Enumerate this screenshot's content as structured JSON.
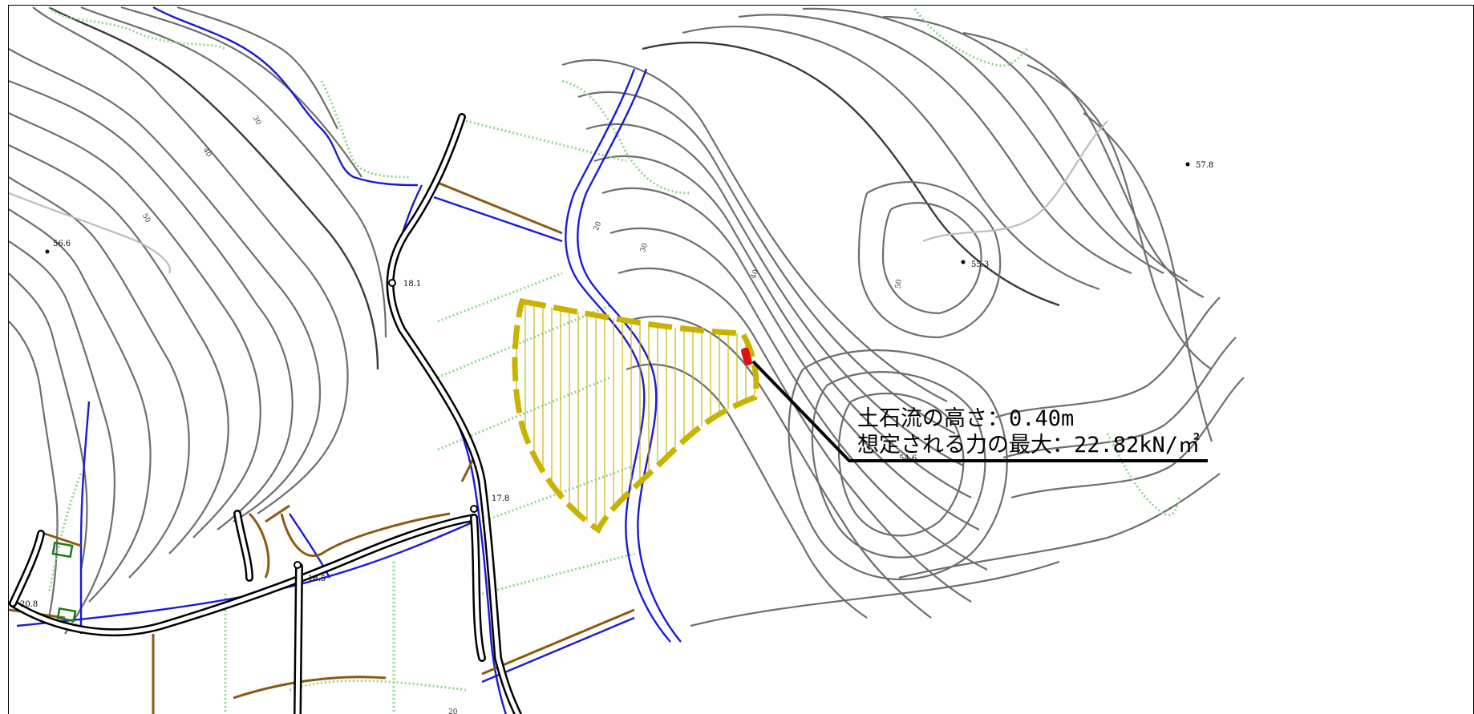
{
  "map": {
    "annotation": {
      "line1": "土石流の高さ：0.40m",
      "line2": "想定される力の最大：22.82kN/㎡"
    },
    "spot_heights": [
      "56.6",
      "18.1",
      "17.8",
      "18.5",
      "20.8",
      "55.3",
      "57.8",
      "54.6"
    ],
    "contour_labels": [
      "30",
      "40",
      "50",
      "20",
      "30",
      "40",
      "50",
      "20"
    ],
    "colors": {
      "contour": "#6e6e6e",
      "river": "#1a1ad6",
      "farm_road": "#8b5a12",
      "boundary": "#8fd68f",
      "hazard_zone": "#c8b400",
      "hazard_point": "#e01010"
    },
    "icons": [
      "spot-height-marker",
      "building-outline"
    ]
  }
}
